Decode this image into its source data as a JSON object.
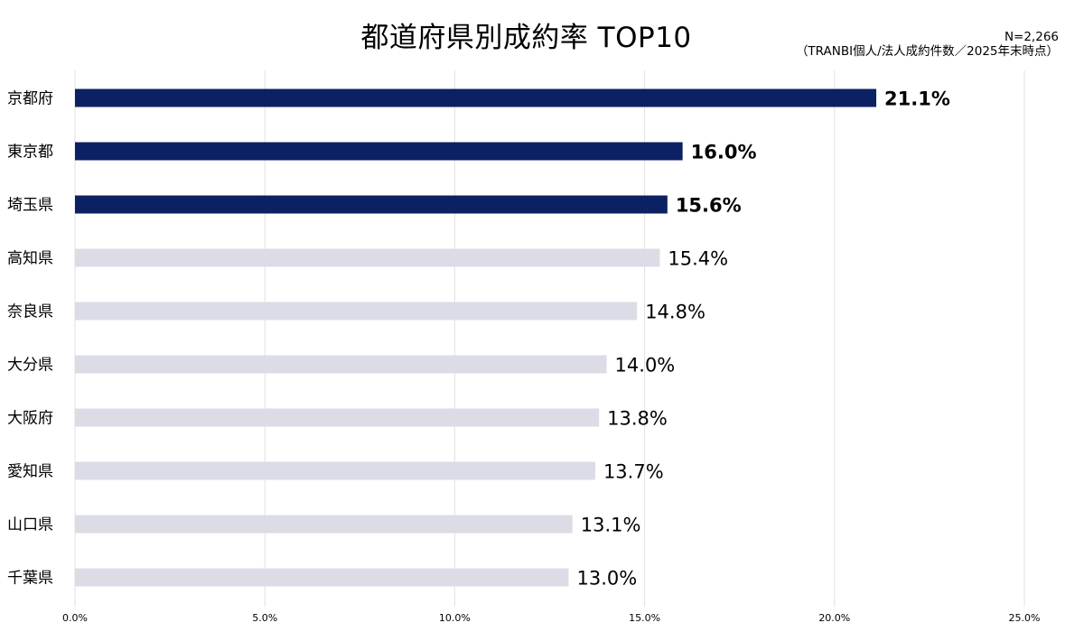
{
  "chart_data": {
    "type": "bar",
    "orientation": "horizontal",
    "title": "都道府県別成約率 TOP10",
    "note_line1": "N=2,266",
    "note_line2": "（TRANBI個人/法人成約件数／2025年末時点）",
    "categories": [
      "京都府",
      "東京都",
      "埼玉県",
      "高知県",
      "奈良県",
      "大分県",
      "大阪府",
      "愛知県",
      "山口県",
      "千葉県"
    ],
    "values": [
      21.1,
      16.0,
      15.6,
      15.4,
      14.8,
      14.0,
      13.8,
      13.7,
      13.1,
      13.0
    ],
    "value_labels": [
      "21.1%",
      "16.0%",
      "15.6%",
      "15.4%",
      "14.8%",
      "14.0%",
      "13.8%",
      "13.7%",
      "13.1%",
      "13.0%"
    ],
    "highlighted": [
      true,
      true,
      true,
      false,
      false,
      false,
      false,
      false,
      false,
      false
    ],
    "xlim": [
      0,
      25
    ],
    "xticks": [
      0,
      5,
      10,
      15,
      20,
      25
    ],
    "xtick_labels": [
      "0.0%",
      "5.0%",
      "10.0%",
      "15.0%",
      "20.0%",
      "25.0%"
    ],
    "xlabel": "",
    "ylabel": "",
    "grid": "vertical",
    "colors": {
      "highlight": "#0b2163",
      "normal": "#dcdce6",
      "grid": "#e2e2e2"
    }
  }
}
